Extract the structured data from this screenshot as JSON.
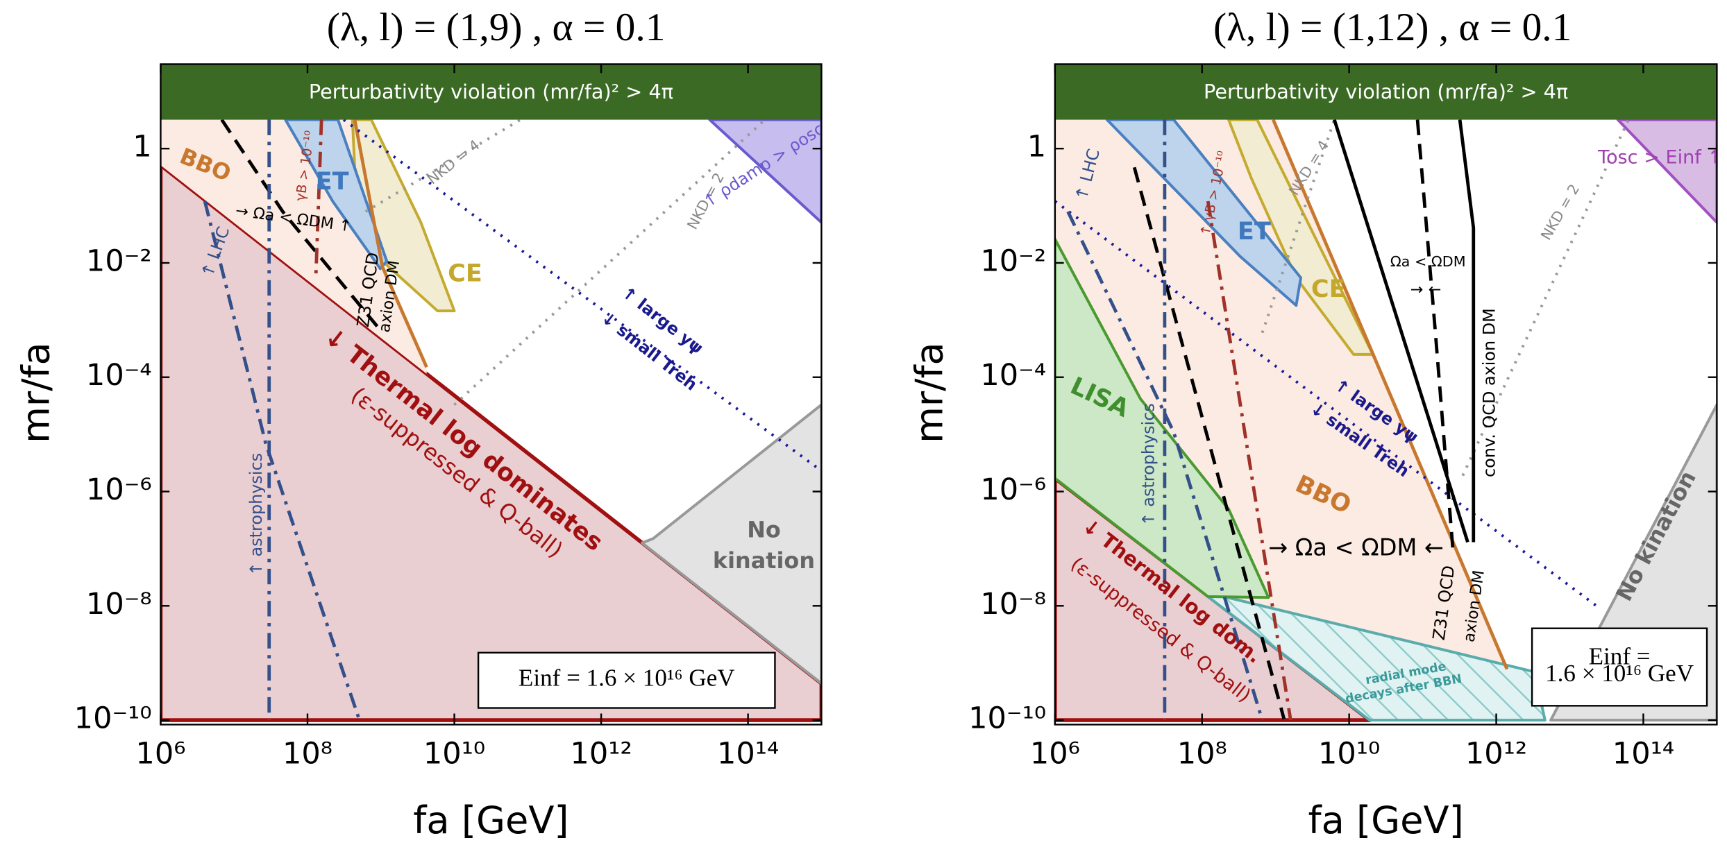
{
  "chart_data": [
    {
      "type": "area",
      "title": "(λ, l) = (1,9) , α = 0.1",
      "xlabel": "fa [GeV]",
      "ylabel": "mr/fa",
      "xscale": "log",
      "yscale": "log",
      "xlim": [
        1000000.0,
        1000000000000000.0
      ],
      "ylim": [
        1e-10,
        30
      ],
      "xticks": [
        {
          "value": 1000000.0,
          "label": "10⁶"
        },
        {
          "value": 100000000.0,
          "label": "10⁸"
        },
        {
          "value": 10000000000.0,
          "label": "10¹⁰"
        },
        {
          "value": 1000000000000.0,
          "label": "10¹²"
        },
        {
          "value": 100000000000000.0,
          "label": "10¹⁴"
        }
      ],
      "yticks": [
        {
          "value": 1e-10,
          "label": "10⁻¹⁰"
        },
        {
          "value": 1e-08,
          "label": "10⁻⁸"
        },
        {
          "value": 1e-06,
          "label": "10⁻⁶"
        },
        {
          "value": 0.0001,
          "label": "10⁻⁴"
        },
        {
          "value": 0.01,
          "label": "10⁻²"
        },
        1
      ],
      "band": {
        "text": "Perturbativity violation (mr/fa)² > 4π",
        "color": "#3b6a24",
        "ymin": 3.2
      },
      "regions": [
        {
          "color": "#eacfd2",
          "edge": "#a01010",
          "points": [
            [
              1000000.0,
              0.51
            ],
            [
              1000000000000000.0,
              4.4e-10
            ],
            [
              1000000000000000.0,
              1e-10
            ],
            [
              1000000.0,
              1e-10
            ]
          ]
        },
        {
          "color": "#fcebe2",
          "edge": "none",
          "points": [
            [
              1000000.0,
              3.2
            ],
            [
              440000000.0,
              3.2
            ],
            [
              1050000000.0,
              0.0085
            ],
            [
              4200000000.0,
              0.00015
            ],
            [
              4200000000.0,
              0.000115
            ],
            [
              1000000.0,
              0.51
            ]
          ]
        },
        {
          "color": "#f2edd2",
          "edge": "#c4ab30",
          "points": [
            [
              410000000.0,
              3.2
            ],
            [
              740000000.0,
              3.2
            ],
            [
              3500000000.0,
              0.051
            ],
            [
              10000000000.0,
              0.00145
            ],
            [
              5900000000.0,
              0.00145
            ],
            [
              1050000000.0,
              0.0107
            ],
            [
              440000000.0,
              0.47
            ]
          ]
        },
        {
          "color": "#bdd4ec",
          "edge": "#4a80c0",
          "points": [
            [
              50000000.0,
              3.2
            ],
            [
              260000000.0,
              3.2
            ],
            [
              1200000000.0,
              0.0107
            ],
            [
              980000000.0,
              0.0079
            ],
            [
              220000000.0,
              0.12
            ]
          ]
        },
        {
          "color": "#c7bdee",
          "edge": "#6a5ad0",
          "points": [
            [
              30000000000000.0,
              3.2
            ],
            [
              1000000000000000.0,
              3.2
            ],
            [
              1000000000000000.0,
              0.051
            ]
          ]
        },
        {
          "color": "#e3e3e3",
          "edge": "#999999",
          "points": [
            [
              3600000000000.0,
              1.26e-07
            ],
            [
              5100000000000.0,
              1.5e-07
            ],
            [
              1000000000000000.0,
              3.3e-05
            ],
            [
              1000000000000000.0,
              4.4e-10
            ]
          ]
        }
      ],
      "lines": [
        {
          "color": "#c8782e",
          "style": "solid",
          "points": [
            [
              440000000.0,
              3.2
            ],
            [
              1050000000.0,
              0.0085
            ],
            [
              4200000000.0,
              0.00015
            ]
          ]
        },
        {
          "color": "#1a1a9c",
          "style": "dotted",
          "points": [
            [
              310000000.0,
              3.2
            ],
            [
              1000000000000000.0,
              2.3e-06
            ]
          ]
        },
        {
          "color": "#999999",
          "style": "dotted",
          "points": [
            [
              620000000.0,
              0.079
            ],
            [
              80000000000.0,
              3.2
            ]
          ]
        },
        {
          "color": "#999999",
          "style": "dotted",
          "points": [
            [
              10000000000.0,
              3.3e-05
            ],
            [
              170000000000000.0,
              3.2
            ]
          ]
        },
        {
          "color": "#000000",
          "style": "dashed",
          "points": [
            [
              6800000.0,
              3.2
            ],
            [
              46000000.0,
              0.079
            ],
            [
              1050000000.0,
              0.0006
            ]
          ]
        },
        {
          "color": "#a0322a",
          "style": "dashdot",
          "points": [
            [
              155000000.0,
              3.2
            ],
            [
              130000000.0,
              0.0055
            ]
          ]
        },
        {
          "color": "#34508a",
          "style": "dashdot",
          "points": [
            [
              4000000.0,
              0.12
            ],
            [
              27000000.0,
              7e-06
            ],
            [
              510000000.0,
              1e-10
            ]
          ]
        },
        {
          "color": "#34508a",
          "style": "dashdot",
          "points": [
            [
              30000000.0,
              3.2
            ],
            [
              30000000.0,
              1e-10
            ]
          ]
        }
      ],
      "annotations": [
        "BBO",
        "ET",
        "CE",
        "→ Ωa < ΩDM ↑",
        "Z31 QCD",
        "axion DM",
        "γB > 10⁻¹⁰",
        "↑ LHC",
        "↑ astrophysics",
        "NKD = 4",
        "NKD = 2",
        "↑ ρdamp > ρosc",
        "↑ large yψ",
        "↓ small Treh",
        "↓ Thermal log dominates",
        "(ε-suppressed & Q-ball)",
        "No",
        "kination"
      ],
      "box": [
        "Einf = 1.6 × 10¹⁶ GeV"
      ]
    },
    {
      "type": "area",
      "title": "(λ, l) = (1,12) , α = 0.1",
      "xlabel": "fa [GeV]",
      "ylabel": "mr/fa",
      "xscale": "log",
      "yscale": "log",
      "xlim": [
        1000000.0,
        1000000000000000.0
      ],
      "ylim": [
        1e-10,
        30
      ],
      "xticks": [
        {
          "value": 1000000.0,
          "label": "10⁶"
        },
        {
          "value": 100000000.0,
          "label": "10⁸"
        },
        {
          "value": 10000000000.0,
          "label": "10¹⁰"
        },
        {
          "value": 1000000000000.0,
          "label": "10¹²"
        },
        {
          "value": 100000000000000.0,
          "label": "10¹⁴"
        }
      ],
      "yticks": [
        {
          "value": 1e-10,
          "label": "10⁻¹⁰"
        },
        {
          "value": 1e-08,
          "label": "10⁻⁸"
        },
        {
          "value": 1e-06,
          "label": "10⁻⁶"
        },
        {
          "value": 0.0001,
          "label": "10⁻⁴"
        },
        {
          "value": 0.01,
          "label": "10⁻²"
        },
        1
      ],
      "band": {
        "text": "Perturbativity violation (mr/fa)² > 4π",
        "color": "#3b6a24",
        "ymin": 3.2
      },
      "regions": [
        {
          "color": "#fcebe2",
          "edge": "none",
          "points": [
            [
              1000000.0,
              3.2
            ],
            [
              930000000.0,
              3.2
            ],
            [
              1400000000000.0,
              7.8e-10
            ],
            [
              120000000.0,
              1.7e-08
            ],
            [
              1000000.0,
              1.7e-06
            ]
          ]
        },
        {
          "color": "#eacfd2",
          "edge": "#a01010",
          "points": [
            [
              1000000.0,
              1.7e-06
            ],
            [
              19000000000.0,
              1e-10
            ],
            [
              1000000.0,
              1e-10
            ]
          ]
        },
        {
          "color": "#e0f3f2",
          "edge": "#5aabab",
          "hatch": true,
          "points": [
            [
              120000000.0,
              1.7e-08
            ],
            [
              3300000000000.0,
              7e-10
            ],
            [
              4600000000000.0,
              1e-10
            ],
            [
              19000000000.0,
              1e-10
            ],
            [
              120000000.0,
              1.45e-08
            ]
          ]
        },
        {
          "color": "#cde8c6",
          "edge": "#4a9a32",
          "points": [
            [
              1000000.0,
              0.026
            ],
            [
              14500000.0,
              4.2e-05
            ],
            [
              230000000.0,
              4.9e-07
            ],
            [
              800000000.0,
              1.4e-08
            ],
            [
              120000000.0,
              1.45e-08
            ],
            [
              1000000.0,
              1.7e-06
            ]
          ]
        },
        {
          "color": "#f2edd2",
          "edge": "#c4ab30",
          "points": [
            [
              230000000.0,
              3.2
            ],
            [
              560000000.0,
              3.2
            ],
            [
              21000000000.0,
              0.00025
            ],
            [
              11500000000.0,
              0.00025
            ],
            [
              1900000000.0,
              0.0055
            ],
            [
              470000000.0,
              0.3
            ]
          ]
        },
        {
          "color": "#bdd4ec",
          "edge": "#4a80c0",
          "points": [
            [
              5100000.0,
              3.2
            ],
            [
              41000000.0,
              3.2
            ],
            [
              2200000000.0,
              0.0055
            ],
            [
              1900000000.0,
              0.0018
            ],
            [
              330000000.0,
              0.013
            ]
          ]
        },
        {
          "color": "#d8bce4",
          "edge": "#a050c0",
          "points": [
            [
              45000000000000.0,
              3.2
            ],
            [
              1000000000000000.0,
              3.2
            ],
            [
              1000000000000000.0,
              0.051
            ]
          ]
        },
        {
          "color": "#e3e3e3",
          "edge": "#999999",
          "points": [
            [
              1000000000000000.0,
              3.3e-05
            ],
            [
              5500000000000.0,
              1e-10
            ],
            [
              1000000000000000.0,
              1e-10
            ]
          ]
        }
      ],
      "lines": [
        {
          "color": "#c8782e",
          "style": "solid",
          "points": [
            [
              930000000.0,
              3.2
            ],
            [
              1400000000000.0,
              7.8e-10
            ]
          ]
        },
        {
          "color": "#1a1a9c",
          "style": "dotted",
          "points": [
            [
              1000000.0,
              0.12
            ],
            [
              26000000000000.0,
              8.9e-09
            ]
          ]
        },
        {
          "color": "#999999",
          "style": "dotted",
          "points": [
            [
              660000000.0,
              0.0006
            ],
            [
              6300000000.0,
              3.2
            ]
          ]
        },
        {
          "color": "#999999",
          "style": "dotted",
          "points": [
            [
              350000000000.0,
              1.9e-06
            ],
            [
              63000000000000.0,
              3.2
            ]
          ]
        },
        {
          "color": "#000000",
          "style": "solid",
          "points": [
            [
              6300000000.0,
              3.2
            ],
            [
              410000000000.0,
              1.3e-07
            ]
          ]
        },
        {
          "color": "#000000",
          "style": "solid",
          "points": [
            [
              320000000000.0,
              3.2
            ],
            [
              490000000000.0,
              0.041
            ],
            [
              490000000000.0,
              1.3e-07
            ]
          ]
        },
        {
          "color": "#000000",
          "style": "dashed",
          "points": [
            [
              85000000000.0,
              3.2
            ],
            [
              145000000000.0,
              0.00093
            ],
            [
              260000000000.0,
              8.3e-08
            ]
          ]
        },
        {
          "color": "#000000",
          "style": "dashed",
          "points": [
            [
              12000000.0,
              0.47
            ],
            [
              1300000000.0,
              1.05e-10
            ]
          ]
        },
        {
          "color": "#a0322a",
          "style": "dashdot",
          "points": [
            [
              120000000.0,
              0.12
            ],
            [
              1600000000.0,
              1e-10
            ]
          ]
        },
        {
          "color": "#34508a",
          "style": "dashdot",
          "points": [
            [
              1500000.0,
              0.079
            ],
            [
              41000000.0,
              1.1e-05
            ],
            [
              660000000.0,
              1e-10
            ]
          ]
        },
        {
          "color": "#34508a",
          "style": "dashdot",
          "points": [
            [
              31000000.0,
              3.2
            ],
            [
              31000000.0,
              1e-10
            ]
          ]
        }
      ],
      "annotations": [
        "↑ LHC",
        "ET",
        "CE",
        "↑ γB > 10⁻¹⁰",
        "NKD = 4",
        "NKD = 2",
        "Tosc > Einf ↑",
        "Ωa < ΩDM",
        "→        ←",
        "conv. QCD axion DM",
        "LISA",
        "↑ astrophysics",
        "↑ large yψ",
        "↓ small Treh",
        "BBO",
        "→ Ωa < ΩDM ←",
        "Z31 QCD",
        "axion DM",
        "↓ Thermal log dom.",
        "(ε-suppressed & Q-ball)",
        "radial mode",
        "decays after BBN",
        "No kination"
      ],
      "box": [
        "Einf =",
        "1.6 × 10¹⁶ GeV"
      ]
    }
  ]
}
